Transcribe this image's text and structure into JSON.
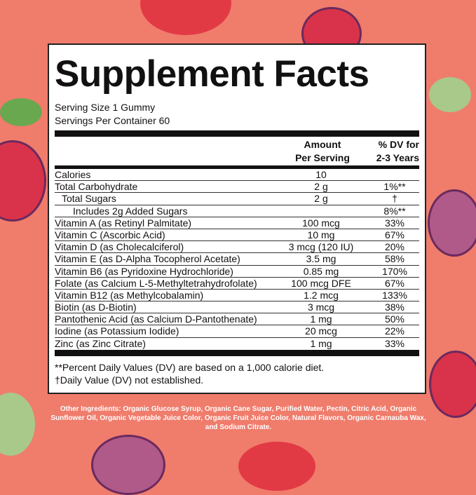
{
  "title": "Supplement Facts",
  "serving_size": "Serving Size 1 Gummy",
  "servings_per_container": "Servings Per Container 60",
  "headers": {
    "amount_1": "Amount",
    "amount_2": "Per Serving",
    "dv_1": "% DV for",
    "dv_2": "2-3 Years"
  },
  "rows": [
    {
      "name": "Calories",
      "amount": "10",
      "dv": ""
    },
    {
      "name": "Total Carbohydrate",
      "amount": "2 g",
      "dv": "1%**"
    },
    {
      "name": "Total Sugars",
      "amount": "2 g",
      "dv": "†",
      "indent": 1
    },
    {
      "name": "Includes 2g Added Sugars",
      "amount": "",
      "dv": "8%**",
      "indent": 2
    },
    {
      "name": "Vitamin A (as Retinyl Palmitate)",
      "amount": "100 mcg",
      "dv": "33%"
    },
    {
      "name": "Vitamin C (Ascorbic Acid)",
      "amount": "10 mg",
      "dv": "67%"
    },
    {
      "name": "Vitamin D (as Cholecalciferol)",
      "amount": "3 mcg (120 IU)",
      "dv": "20%"
    },
    {
      "name": "Vitamin E (as D-Alpha Tocopherol Acetate)",
      "amount": "3.5 mg",
      "dv": "58%"
    },
    {
      "name": "Vitamin B6 (as Pyridoxine Hydrochloride)",
      "amount": "0.85 mg",
      "dv": "170%"
    },
    {
      "name": "Folate (as Calcium L-5-Methyltetrahydrofolate)",
      "amount": "100 mcg DFE",
      "dv": "67%"
    },
    {
      "name": "Vitamin B12 (as Methylcobalamin)",
      "amount": "1.2 mcg",
      "dv": "133%"
    },
    {
      "name": "Biotin (as D-Biotin)",
      "amount": "3 mcg",
      "dv": "38%"
    },
    {
      "name": "Pantothenic Acid (as Calcium D-Pantothenate)",
      "amount": "1 mg",
      "dv": "50%"
    },
    {
      "name": "Iodine (as Potassium Iodide)",
      "amount": "20 mcg",
      "dv": "22%"
    },
    {
      "name": "Zinc (as Zinc Citrate)",
      "amount": "1 mg",
      "dv": "33%"
    }
  ],
  "footnote_1": "**Percent Daily Values (DV) are based on a 1,000 calorie diet.",
  "footnote_2": "†Daily Value (DV) not established.",
  "other_ingredients": "Other Ingredients: Organic Glucose Syrup, Organic Cane Sugar, Purified Water, Pectin, Citric Acid, Organic Sunflower Oil, Organic Vegetable Juice Color, Organic Fruit Juice Color, Natural Flavors, Organic Carnauba Wax, and Sodium Citrate.",
  "colors": {
    "background": "#f07c6c",
    "berry": "#8e3a6e",
    "cherry": "#d8334a",
    "leaf": "#6aa84f"
  }
}
